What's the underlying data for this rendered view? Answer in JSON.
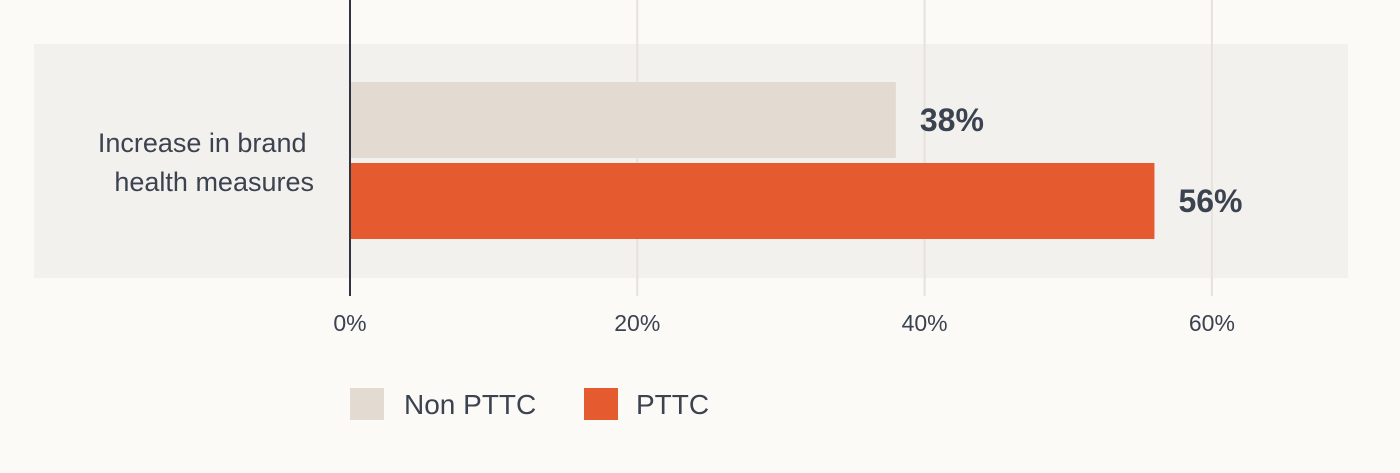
{
  "chart_data": {
    "type": "bar",
    "orientation": "horizontal",
    "categories": [
      "Increase in brand health measures"
    ],
    "category_label_lines": [
      "Increase in brand",
      "health measures"
    ],
    "series": [
      {
        "name": "Non PTTC",
        "values": [
          38
        ],
        "color": "#e3dad2",
        "label": "38%"
      },
      {
        "name": "PTTC",
        "values": [
          56
        ],
        "color": "#e55a2f",
        "label": "56%"
      }
    ],
    "xlim": [
      0,
      70
    ],
    "xticks": [
      0,
      20,
      40,
      60
    ],
    "xtick_labels": [
      "0%",
      "20%",
      "40%",
      "60%"
    ],
    "grid": true,
    "legend_position": "bottom-left",
    "background_band_color": "#f3f1ed",
    "axis_color": "#2f3440",
    "grid_color": "#e6e2dc"
  }
}
